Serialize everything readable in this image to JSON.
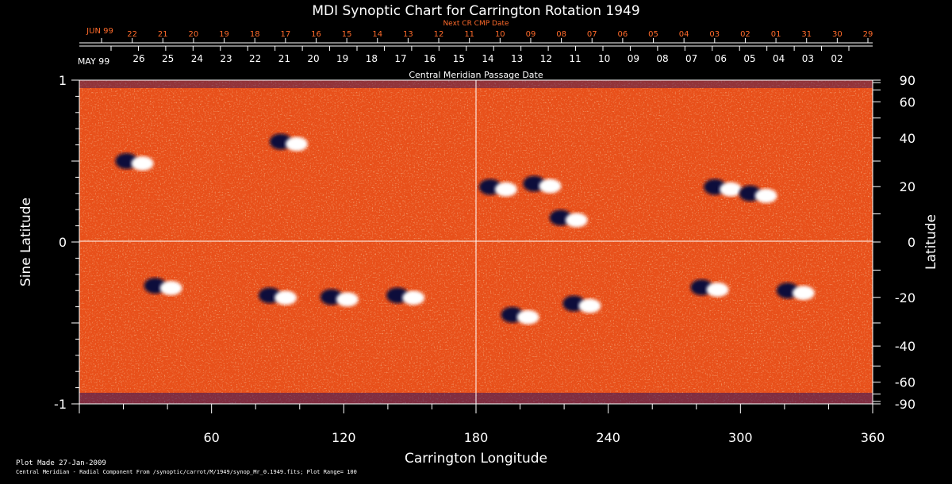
{
  "chart_data": {
    "type": "heatmap",
    "title": "MDI Synoptic Chart for Carrington Rotation 1949",
    "xlabel": "Carrington Longitude",
    "ylabel_left": "Sine Latitude",
    "ylabel_right": "Latitude",
    "xlim": [
      0,
      360
    ],
    "ylim": [
      -1,
      1
    ],
    "x_ticks": [
      "60",
      "120",
      "180",
      "240",
      "300",
      "360"
    ],
    "x_tick_values": [
      60,
      120,
      180,
      240,
      300,
      360
    ],
    "y_ticks_left": [
      "1",
      "0",
      "-1"
    ],
    "y_tick_values_left": [
      1,
      0,
      -1
    ],
    "y_ticks_right": [
      "90",
      "60",
      "40",
      "20",
      "0",
      "-20",
      "-40",
      "-60",
      "-90"
    ],
    "y_tick_degrees_right": [
      90,
      60,
      40,
      20,
      0,
      -20,
      -40,
      -60,
      -90
    ],
    "next_cr_label": "Next CR CMP Date",
    "next_cr_month": "JUN 99",
    "next_cr_dates": [
      "22",
      "21",
      "20",
      "19",
      "18",
      "17",
      "16",
      "15",
      "14",
      "13",
      "12",
      "11",
      "10",
      "09",
      "08",
      "07",
      "06",
      "05",
      "04",
      "03",
      "02",
      "01",
      "31",
      "30",
      "29"
    ],
    "cmp_month": "MAY 99",
    "cmp_dates": [
      "26",
      "25",
      "24",
      "23",
      "22",
      "21",
      "20",
      "19",
      "18",
      "17",
      "16",
      "15",
      "14",
      "13",
      "12",
      "11",
      "10",
      "09",
      "08",
      "07",
      "06",
      "05",
      "04",
      "03",
      "02"
    ],
    "cmp_label": "Central Meridian Passage Date",
    "plot_range": 100,
    "colors": {
      "background": "#000000",
      "field_base": "#e8501a",
      "positive": "#ffffff",
      "negative": "#0a0a3a",
      "axes": "#ffffff",
      "date_red": "#ff6a2a"
    },
    "active_regions": [
      {
        "lon": 25,
        "sinlat": 0.5,
        "polarity": "bipolar"
      },
      {
        "lon": 95,
        "sinlat": 0.62,
        "polarity": "bipolar"
      },
      {
        "lon": 190,
        "sinlat": 0.34,
        "polarity": "bipolar"
      },
      {
        "lon": 210,
        "sinlat": 0.36,
        "polarity": "bipolar"
      },
      {
        "lon": 222,
        "sinlat": 0.15,
        "polarity": "bipolar"
      },
      {
        "lon": 292,
        "sinlat": 0.34,
        "polarity": "bipolar"
      },
      {
        "lon": 308,
        "sinlat": 0.3,
        "polarity": "bipolar"
      },
      {
        "lon": 38,
        "sinlat": -0.27,
        "polarity": "bipolar"
      },
      {
        "lon": 90,
        "sinlat": -0.33,
        "polarity": "bipolar"
      },
      {
        "lon": 118,
        "sinlat": -0.34,
        "polarity": "bipolar"
      },
      {
        "lon": 148,
        "sinlat": -0.33,
        "polarity": "bipolar"
      },
      {
        "lon": 200,
        "sinlat": -0.45,
        "polarity": "bipolar"
      },
      {
        "lon": 228,
        "sinlat": -0.38,
        "polarity": "bipolar"
      },
      {
        "lon": 286,
        "sinlat": -0.28,
        "polarity": "bipolar"
      },
      {
        "lon": 325,
        "sinlat": -0.3,
        "polarity": "bipolar"
      }
    ]
  },
  "footer": {
    "line1": "Plot Made 27-Jan-2009",
    "line2": "Central Meridian - Radial Component From /synoptic/carrot/M/1949/synop_Mr_0.1949.fits; Plot Range= 100"
  }
}
